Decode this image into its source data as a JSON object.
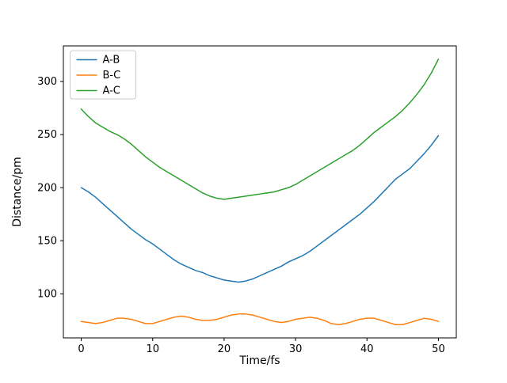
{
  "chart_data": {
    "type": "line",
    "title": "",
    "xlabel": "Time/fs",
    "ylabel": "Distance/pm",
    "xlim": [
      -2.5,
      52.5
    ],
    "ylim": [
      58.5,
      333.5
    ],
    "xticks": [
      0,
      10,
      20,
      30,
      40,
      50
    ],
    "yticks": [
      100,
      150,
      200,
      250,
      300
    ],
    "grid": false,
    "legend_position": "upper-left",
    "line_width": 1.5,
    "x": [
      0,
      1,
      2,
      3,
      4,
      5,
      6,
      7,
      8,
      9,
      10,
      11,
      12,
      13,
      14,
      15,
      16,
      17,
      18,
      19,
      20,
      21,
      22,
      23,
      24,
      25,
      26,
      27,
      28,
      29,
      30,
      31,
      32,
      33,
      34,
      35,
      36,
      37,
      38,
      39,
      40,
      41,
      42,
      43,
      44,
      45,
      46,
      47,
      48,
      49,
      50
    ],
    "series": [
      {
        "name": "A-B",
        "color": "#1f77b4",
        "values": [
          200,
          196,
          191,
          185,
          179,
          173,
          167,
          161,
          156,
          151,
          147,
          142,
          137,
          132,
          128,
          125,
          122,
          120,
          117,
          115,
          113,
          112,
          111,
          112,
          114,
          117,
          120,
          123,
          126,
          130,
          133,
          136,
          140,
          145,
          150,
          155,
          160,
          165,
          170,
          175,
          181,
          187,
          194,
          201,
          208,
          213,
          218,
          225,
          232,
          240,
          249
        ]
      },
      {
        "name": "B-C",
        "color": "#ff7f0e",
        "values": [
          74,
          73,
          72,
          73,
          75,
          77,
          77,
          76,
          74,
          72,
          72,
          74,
          76,
          78,
          79,
          78,
          76,
          75,
          75,
          76,
          78,
          80,
          81,
          81,
          80,
          78,
          76,
          74,
          73,
          74,
          76,
          77,
          78,
          77,
          75,
          72,
          71,
          72,
          74,
          76,
          77,
          77,
          75,
          73,
          71,
          71,
          73,
          75,
          77,
          76,
          74
        ]
      },
      {
        "name": "A-C",
        "color": "#2ca02c",
        "values": [
          274,
          267,
          261,
          257,
          253,
          250,
          246,
          241,
          235,
          229,
          224,
          219,
          215,
          211,
          207,
          203,
          199,
          195,
          192,
          190,
          189,
          190,
          191,
          192,
          193,
          194,
          195,
          196,
          198,
          200,
          203,
          207,
          211,
          215,
          219,
          223,
          227,
          231,
          235,
          240,
          246,
          252,
          257,
          262,
          267,
          273,
          280,
          288,
          297,
          308,
          321
        ]
      }
    ]
  }
}
